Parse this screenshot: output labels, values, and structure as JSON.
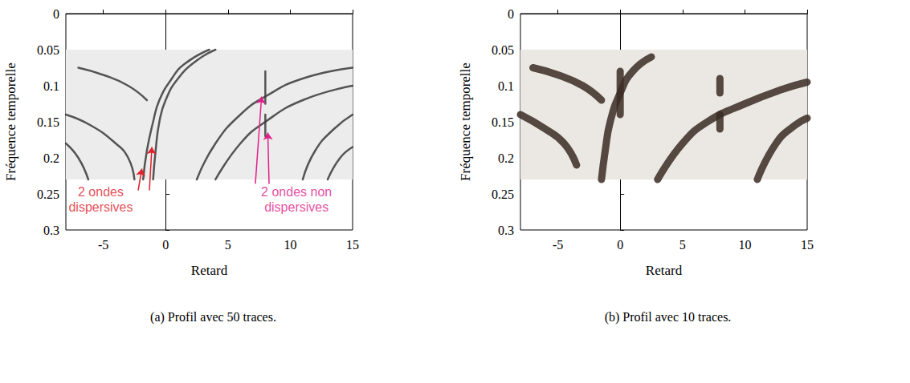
{
  "chart_data": [
    {
      "type": "line",
      "title": "(a) Profil avec 50 traces.",
      "x_label": "Retard",
      "y_label": "Fréquence temporelle",
      "xlim": [
        -8,
        15
      ],
      "xticks": [
        -5,
        0,
        5,
        10,
        15
      ],
      "ylim": [
        0,
        0.3
      ],
      "yticks": [
        0,
        0.05,
        0.1,
        0.15,
        0.2,
        0.25,
        0.3
      ],
      "grid": false,
      "color": "#3a3a3a",
      "band": [
        0.05,
        0.23
      ],
      "series": [
        {
          "x": [
            -1.8,
            -1.5,
            -1,
            -0.5,
            0.5,
            1.5,
            3.5
          ],
          "values": [
            0.23,
            0.19,
            0.15,
            0.12,
            0.09,
            0.07,
            0.05
          ]
        },
        {
          "x": [
            -1,
            -0.8,
            -0.5,
            0,
            1,
            2.5,
            4
          ],
          "values": [
            0.23,
            0.19,
            0.15,
            0.12,
            0.09,
            0.065,
            0.05
          ]
        },
        {
          "x": [
            -1.5,
            -3,
            -5,
            -7
          ],
          "values": [
            0.12,
            0.1,
            0.085,
            0.075
          ]
        },
        {
          "x": [
            -8,
            -6,
            -4,
            -3,
            -2.5
          ],
          "values": [
            0.14,
            0.155,
            0.18,
            0.2,
            0.23
          ]
        },
        {
          "x": [
            -8,
            -7,
            -6.2
          ],
          "values": [
            0.18,
            0.2,
            0.23
          ]
        },
        {
          "x": [
            2.5,
            4,
            6,
            8,
            11,
            15
          ],
          "values": [
            0.23,
            0.18,
            0.14,
            0.115,
            0.09,
            0.075
          ]
        },
        {
          "x": [
            4,
            6,
            8,
            11,
            15
          ],
          "values": [
            0.23,
            0.18,
            0.15,
            0.12,
            0.1
          ]
        },
        {
          "x": [
            11,
            12,
            13.5,
            15
          ],
          "values": [
            0.23,
            0.19,
            0.16,
            0.14
          ]
        },
        {
          "x": [
            13,
            14,
            15
          ],
          "values": [
            0.23,
            0.2,
            0.185
          ]
        },
        {
          "x": [
            8,
            8
          ],
          "values": [
            0.08,
            0.125
          ]
        },
        {
          "x": [
            8,
            8
          ],
          "values": [
            0.14,
            0.17
          ]
        }
      ],
      "annotations": [
        {
          "text": "2 ondes dispersives",
          "color": "#e0202a",
          "at": [
            -5.2,
            0.258
          ],
          "arrows": [
            {
              "from": [
                -2.2,
                0.245
              ],
              "to": [
                -1.9,
                0.215
              ]
            },
            {
              "from": [
                -1.3,
                0.245
              ],
              "to": [
                -1.1,
                0.185
              ]
            }
          ]
        },
        {
          "text": "2 ondes non dispersives",
          "color": "#e0208a",
          "at": [
            10.5,
            0.258
          ],
          "arrows": [
            {
              "from": [
                7.2,
                0.236
              ],
              "to": [
                7.7,
                0.115
              ]
            },
            {
              "from": [
                8.3,
                0.236
              ],
              "to": [
                8.2,
                0.165
              ]
            }
          ]
        }
      ]
    },
    {
      "type": "line",
      "title": "(b) Profil avec 10 traces.",
      "x_label": "Retard",
      "y_label": "Fréquence temporelle",
      "xlim": [
        -8,
        15
      ],
      "xticks": [
        -5,
        0,
        5,
        10,
        15
      ],
      "ylim": [
        0,
        0.3
      ],
      "yticks": [
        0,
        0.05,
        0.1,
        0.15,
        0.2,
        0.25,
        0.3
      ],
      "grid": false,
      "color": "#3b2b25",
      "band": [
        0.05,
        0.23
      ],
      "series": [
        {
          "x": [
            -1.5,
            -1.2,
            -0.8,
            0,
            1,
            2.5
          ],
          "values": [
            0.23,
            0.19,
            0.15,
            0.11,
            0.08,
            0.06
          ]
        },
        {
          "x": [
            -1.5,
            -3,
            -5,
            -7
          ],
          "values": [
            0.12,
            0.1,
            0.085,
            0.075
          ]
        },
        {
          "x": [
            -8,
            -6,
            -4.5,
            -3.5
          ],
          "values": [
            0.14,
            0.16,
            0.18,
            0.21
          ]
        },
        {
          "x": [
            0,
            0,
            0
          ],
          "values": [
            0.08,
            0.11,
            0.14
          ]
        },
        {
          "x": [
            3,
            5,
            7,
            10,
            13,
            15
          ],
          "values": [
            0.23,
            0.18,
            0.15,
            0.125,
            0.105,
            0.095
          ]
        },
        {
          "x": [
            11,
            12.5,
            14,
            15
          ],
          "values": [
            0.23,
            0.18,
            0.155,
            0.145
          ]
        },
        {
          "x": [
            8,
            8
          ],
          "values": [
            0.09,
            0.11
          ]
        },
        {
          "x": [
            8,
            8
          ],
          "values": [
            0.14,
            0.16
          ]
        }
      ],
      "annotations": []
    }
  ]
}
